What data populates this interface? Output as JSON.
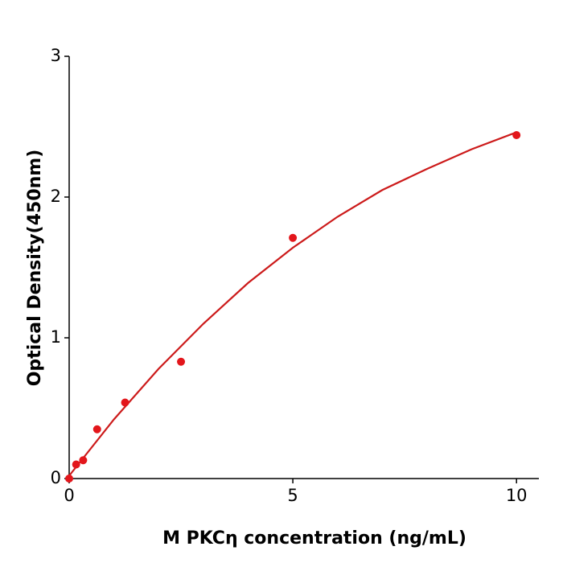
{
  "chart_data": {
    "type": "scatter",
    "xlabel": "M  PKCη concentration (ng/mL)",
    "ylabel": "Optical Density(450nm)",
    "xlim": [
      0,
      10.5
    ],
    "xticks": [
      0,
      5,
      10
    ],
    "ylim": [
      0,
      3
    ],
    "yticks": [
      0,
      1,
      2,
      3
    ],
    "series": [
      {
        "type": "scatter",
        "color": "#e3161b",
        "x": [
          0,
          0.156,
          0.3125,
          0.625,
          1.25,
          2.5,
          5,
          10
        ],
        "values": [
          0.0,
          0.1,
          0.13,
          0.35,
          0.54,
          0.83,
          1.71,
          2.44
        ]
      },
      {
        "type": "line",
        "color": "#cc1a1a",
        "x": [
          0,
          1,
          2,
          3,
          4,
          5,
          6,
          7,
          8,
          9,
          10
        ],
        "values": [
          0.02,
          0.42,
          0.78,
          1.1,
          1.39,
          1.64,
          1.86,
          2.05,
          2.2,
          2.34,
          2.46
        ]
      }
    ]
  }
}
